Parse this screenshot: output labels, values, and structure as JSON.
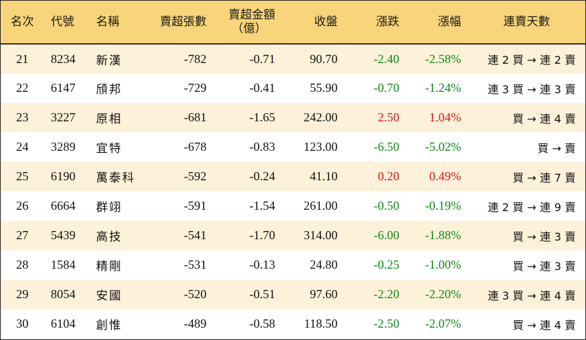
{
  "headers": {
    "rank": "名次",
    "code": "代號",
    "name": "名稱",
    "net_sell_lots": "賣超張數",
    "net_sell_amount_line1": "賣超金額",
    "net_sell_amount_line2": "（億）",
    "close": "收盤",
    "change": "漲跌",
    "change_pct": "漲幅",
    "streak": "連賣天數"
  },
  "colors": {
    "header_bg": "#f8d57a",
    "row_stripe": "#fdf1d9",
    "up": "#e0141e",
    "down": "#0e8a16"
  },
  "rows": [
    {
      "rank": "21",
      "code": "8234",
      "name": "新漢",
      "lots": "-782",
      "amount": "-0.71",
      "close": "90.70",
      "change": "-2.40",
      "pct": "-2.58%",
      "dir": "down",
      "streak": "連 2 買 → 連 2 賣"
    },
    {
      "rank": "22",
      "code": "6147",
      "name": "頎邦",
      "lots": "-729",
      "amount": "-0.41",
      "close": "55.90",
      "change": "-0.70",
      "pct": "-1.24%",
      "dir": "down",
      "streak": "連 3 買 → 連 3 賣"
    },
    {
      "rank": "23",
      "code": "3227",
      "name": "原相",
      "lots": "-681",
      "amount": "-1.65",
      "close": "242.00",
      "change": "2.50",
      "pct": "1.04%",
      "dir": "up",
      "streak": "買 → 連 4 賣"
    },
    {
      "rank": "24",
      "code": "3289",
      "name": "宜特",
      "lots": "-678",
      "amount": "-0.83",
      "close": "123.00",
      "change": "-6.50",
      "pct": "-5.02%",
      "dir": "down",
      "streak": "買 → 賣"
    },
    {
      "rank": "25",
      "code": "6190",
      "name": "萬泰科",
      "lots": "-592",
      "amount": "-0.24",
      "close": "41.10",
      "change": "0.20",
      "pct": "0.49%",
      "dir": "up",
      "streak": "買 → 連 7 賣"
    },
    {
      "rank": "26",
      "code": "6664",
      "name": "群翊",
      "lots": "-591",
      "amount": "-1.54",
      "close": "261.00",
      "change": "-0.50",
      "pct": "-0.19%",
      "dir": "down",
      "streak": "連 2 買 → 連 9 賣"
    },
    {
      "rank": "27",
      "code": "5439",
      "name": "高技",
      "lots": "-541",
      "amount": "-1.70",
      "close": "314.00",
      "change": "-6.00",
      "pct": "-1.88%",
      "dir": "down",
      "streak": "買 → 連 3 賣"
    },
    {
      "rank": "28",
      "code": "1584",
      "name": "精剛",
      "lots": "-531",
      "amount": "-0.13",
      "close": "24.80",
      "change": "-0.25",
      "pct": "-1.00%",
      "dir": "down",
      "streak": "買 → 連 3 賣"
    },
    {
      "rank": "29",
      "code": "8054",
      "name": "安國",
      "lots": "-520",
      "amount": "-0.51",
      "close": "97.60",
      "change": "-2.20",
      "pct": "-2.20%",
      "dir": "down",
      "streak": "連 3 買 → 連 4 賣"
    },
    {
      "rank": "30",
      "code": "6104",
      "name": "創惟",
      "lots": "-489",
      "amount": "-0.58",
      "close": "118.50",
      "change": "-2.50",
      "pct": "-2.07%",
      "dir": "down",
      "streak": "買 → 連 4 賣"
    }
  ]
}
